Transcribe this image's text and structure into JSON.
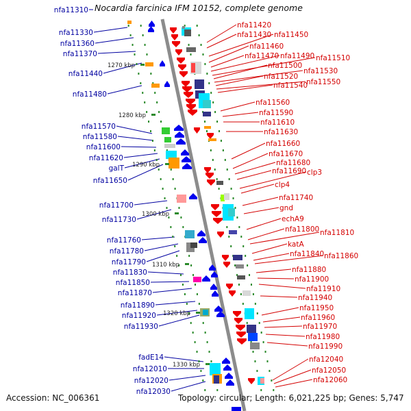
{
  "title": "Nocardia farcinica IFM 10152, complete genome",
  "footer": {
    "accession": "Accession: NC_006361",
    "summary": "Topology: circular; Length: 6,021,225 bp; Genes: 5,747"
  },
  "colors": {
    "left_label": "#0000a0",
    "right_label": "#d40000",
    "backbone": "#8c8c8c",
    "tick": "#2a8a2a",
    "forward_arrow": "#0000ee",
    "reverse_arrow": "#ee0000"
  },
  "scale_labels": [
    "1270 kbp",
    "1280 kbp",
    "1290 kbp",
    "1300 kbp",
    "1310 kbp",
    "1320 kbp",
    "1330 kbp"
  ],
  "left_genes": [
    "nfa11310",
    "nfa11330",
    "nfa11360",
    "nfa11370",
    "nfa11440",
    "nfa11480",
    "nfa11570",
    "nfa11580",
    "nfa11600",
    "nfa11620",
    "galT",
    "nfa11650",
    "nfa11700",
    "nfa11730",
    "nfa11760",
    "nfa11780",
    "nfa11790",
    "nfa11830",
    "nfa11850",
    "nfa11870",
    "nfa11890",
    "nfa11920",
    "nfa11930",
    "fadE14",
    "nfa12010",
    "nfa12020",
    "nfa12030"
  ],
  "right_genes": [
    "nfa11420",
    "nfa11430",
    "nfa11450",
    "nfa11460",
    "nfa11470",
    "nfa11490",
    "nfa11510",
    "nfa11500",
    "nfa11530",
    "nfa11520",
    "nfa11550",
    "nfa11540",
    "nfa11560",
    "nfa11590",
    "nfa11610",
    "nfa11630",
    "nfa11660",
    "nfa11670",
    "nfa11680",
    "nfa11690",
    "clp3",
    "clp4",
    "nfa11740",
    "gnd",
    "echA9",
    "nfa11800",
    "nfa11810",
    "katA",
    "nfa11840",
    "nfa11860",
    "nfa11880",
    "nfa11900",
    "nfa11910",
    "nfa11940",
    "nfa11950",
    "nfa11960",
    "nfa11970",
    "nfa11980",
    "nfa11990",
    "nfa12040",
    "nfa12050",
    "nfa12060"
  ]
}
